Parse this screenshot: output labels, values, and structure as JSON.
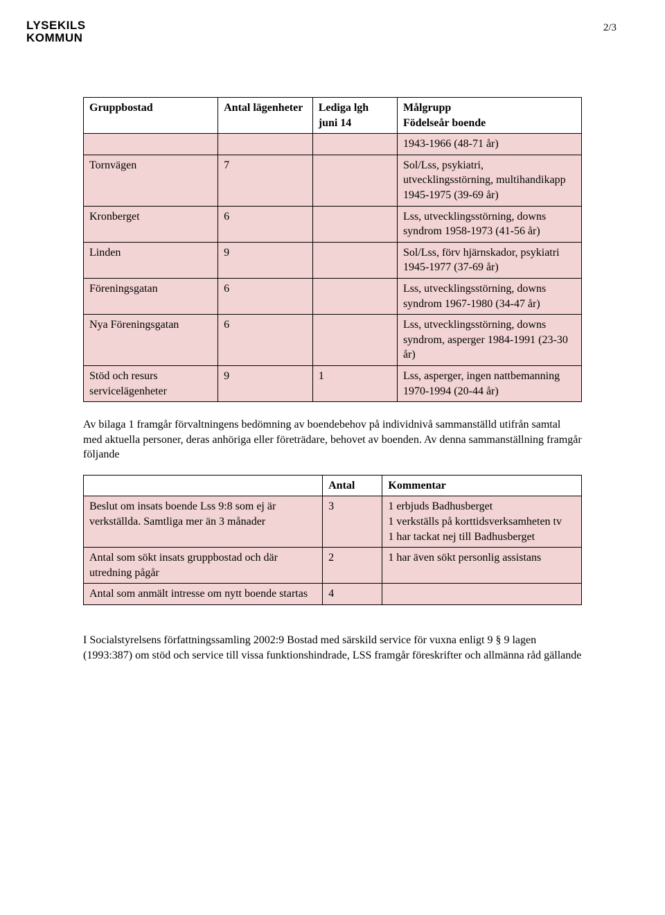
{
  "page": {
    "number_label": "2/3"
  },
  "logo": {
    "line1": "LYSEKILS",
    "line2": "KOMMUN"
  },
  "table1": {
    "col_widths": [
      "27%",
      "19%",
      "17%",
      "37%"
    ],
    "pink_bg": "#f2d4d4",
    "border_color": "#000000",
    "headers": [
      "Gruppbostad",
      "Antal lägenheter",
      "Lediga lgh juni 14",
      "Målgrupp Födelseår boende"
    ],
    "header_cols": {
      "c3_line1": "Lediga lgh",
      "c3_line2": "juni 14",
      "c4_line1": "Målgrupp",
      "c4_line2": "Födelseår boende"
    },
    "rows": [
      {
        "name": "",
        "count": "",
        "vacant": "",
        "desc": "1943-1966 (48-71 år)",
        "pink": true
      },
      {
        "name": "Tornvägen",
        "count": "7",
        "vacant": "",
        "desc": "Sol/Lss, psykiatri, utvecklingsstörning, multihandikapp 1945-1975 (39-69 år)",
        "pink": true
      },
      {
        "name": "Kronberget",
        "count": "6",
        "vacant": "",
        "desc": "Lss, utvecklingsstörning, downs syndrom 1958-1973 (41-56 år)",
        "pink": true
      },
      {
        "name": "Linden",
        "count": "9",
        "vacant": "",
        "desc": "Sol/Lss, förv hjärnskador, psykiatri 1945-1977 (37-69 år)",
        "pink": true
      },
      {
        "name": "Föreningsgatan",
        "count": "6",
        "vacant": "",
        "desc": "Lss, utvecklingsstörning, downs syndrom 1967-1980 (34-47 år)",
        "pink": true
      },
      {
        "name": "Nya Föreningsgatan",
        "count": "6",
        "vacant": "",
        "desc": "Lss, utvecklingsstörning, downs syndrom, asperger 1984-1991 (23-30 år)",
        "pink": true
      },
      {
        "name": "Stöd och resurs servicelägenheter",
        "count": "9",
        "vacant": "1",
        "desc": "Lss, asperger, ingen nattbemanning 1970-1994 (20-44 år)",
        "pink": true
      }
    ]
  },
  "para1": "Av bilaga 1  framgår förvaltningens bedömning av boendebehov på individnivå sammanställd  utifrån samtal med aktuella personer, deras anhöriga eller företrädare, behovet av boenden. Av denna sammanställning framgår följande",
  "table2": {
    "col_widths": [
      "48%",
      "12%",
      "40%"
    ],
    "pink_bg": "#f2d4d4",
    "border_color": "#000000",
    "headers": [
      "",
      "Antal",
      "Kommentar"
    ],
    "rows": [
      {
        "desc": "Beslut om insats boende Lss 9:8 som ej är verkställda. Samtliga mer än 3 månader",
        "count": "3",
        "comment": "1 erbjuds Badhusberget\n1 verkställs på korttidsverksamheten tv\n1 har tackat nej till Badhusberget",
        "pink": true
      },
      {
        "desc": "Antal som sökt insats gruppbostad och där utredning pågår",
        "count": "2",
        "comment": "1 har även sökt personlig assistans",
        "pink": true
      },
      {
        "desc": "Antal som anmält intresse om nytt boende startas",
        "count": "4",
        "comment": "",
        "pink": true
      }
    ]
  },
  "para2": "I Socialstyrelsens författningssamling 2002:9 Bostad med särskild service för vuxna enligt 9 § 9 lagen (1993:387) om stöd och service till vissa funktionshindrade, LSS framgår föreskrifter och allmänna råd gällande"
}
